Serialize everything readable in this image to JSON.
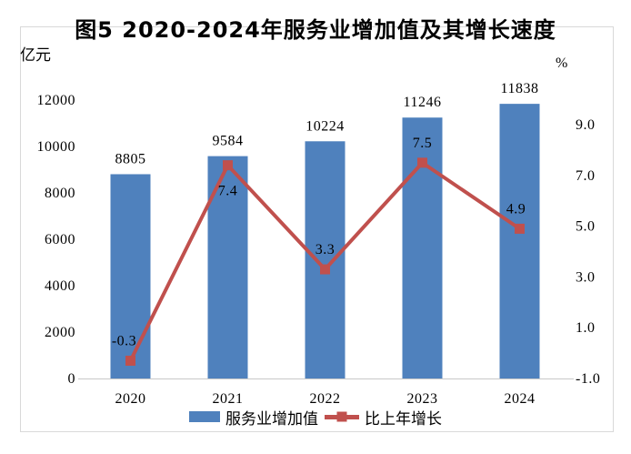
{
  "chart_data": {
    "type": "bar",
    "subtype": "bar-line-combo",
    "title": "图5 2020-2024年服务业增加值及其增长速度",
    "categories": [
      "2020",
      "2021",
      "2022",
      "2023",
      "2024"
    ],
    "series": [
      {
        "name": "服务业增加值",
        "type": "bar",
        "axis": "left",
        "color": "#4f81bd",
        "values": [
          8805,
          9584,
          10224,
          11246,
          11838
        ],
        "value_labels": [
          "8805",
          "9584",
          "10224",
          "11246",
          "11838"
        ]
      },
      {
        "name": "比上年增长",
        "type": "line",
        "axis": "right",
        "color": "#c0504d",
        "marker": "square",
        "values": [
          -0.3,
          7.4,
          3.3,
          7.5,
          4.9
        ],
        "value_labels": [
          "-0.3",
          "7.4",
          "3.3",
          "7.5",
          "4.9"
        ],
        "label_positions": [
          "above",
          "below",
          "above",
          "above",
          "above"
        ]
      }
    ],
    "left_axis": {
      "unit": "亿元",
      "min": 0,
      "max": 12000,
      "step": 2000,
      "ticks": [
        "0",
        "2000",
        "4000",
        "6000",
        "8000",
        "10000",
        "12000"
      ]
    },
    "right_axis": {
      "unit": "%",
      "min": -1.0,
      "max": 9.0,
      "step": 2.0,
      "ticks": [
        "-1.0",
        "1.0",
        "3.0",
        "5.0",
        "7.0",
        "9.0"
      ]
    },
    "grid": false,
    "legend_position": "bottom",
    "axis_color": "#c9c9c9",
    "frame_border_color": "#d9d9d9",
    "text_color": "#000000"
  }
}
